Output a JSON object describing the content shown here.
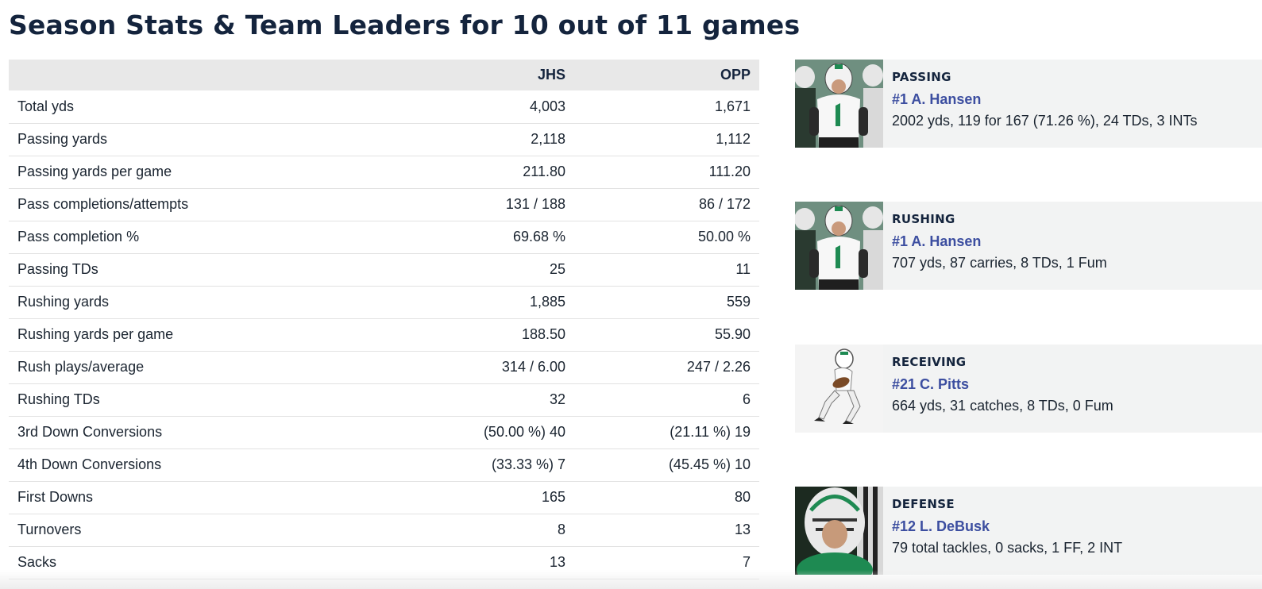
{
  "page": {
    "title": "Season Stats & Team Leaders for 10 out of 11 games"
  },
  "stats_table": {
    "headers": [
      "",
      "JHS",
      "OPP"
    ],
    "rows": [
      {
        "label": "Total yds",
        "jhs": "4,003",
        "opp": "1,671"
      },
      {
        "label": "Passing yards",
        "jhs": "2,118",
        "opp": "1,112"
      },
      {
        "label": "Passing yards per game",
        "jhs": "211.80",
        "opp": "111.20"
      },
      {
        "label": "Pass completions/attempts",
        "jhs": "131 / 188",
        "opp": "86 / 172"
      },
      {
        "label": "Pass completion %",
        "jhs": "69.68 %",
        "opp": "50.00 %"
      },
      {
        "label": "Passing TDs",
        "jhs": "25",
        "opp": "11"
      },
      {
        "label": "Rushing yards",
        "jhs": "1,885",
        "opp": "559"
      },
      {
        "label": "Rushing yards per game",
        "jhs": "188.50",
        "opp": "55.90"
      },
      {
        "label": "Rush plays/average",
        "jhs": "314 / 6.00",
        "opp": "247 / 2.26"
      },
      {
        "label": "Rushing TDs",
        "jhs": "32",
        "opp": "6"
      },
      {
        "label": "3rd Down Conversions",
        "jhs": "(50.00 %) 40",
        "opp": "(21.11 %) 19"
      },
      {
        "label": "4th Down Conversions",
        "jhs": "(33.33 %) 7",
        "opp": "(45.45 %) 10"
      },
      {
        "label": "First Downs",
        "jhs": "165",
        "opp": "80"
      },
      {
        "label": "Turnovers",
        "jhs": "8",
        "opp": "13"
      },
      {
        "label": "Sacks",
        "jhs": "13",
        "opp": "7"
      }
    ]
  },
  "leaders": [
    {
      "category": "PASSING",
      "player": "#1 A. Hansen",
      "line": "2002 yds, 119 for 167 (71.26 %), 24 TDs, 3 INTs",
      "photo": "player-photo-team"
    },
    {
      "category": "RUSHING",
      "player": "#1 A. Hansen",
      "line": "707 yds, 87 carries, 8 TDs, 1 Fum",
      "photo": "player-photo-team"
    },
    {
      "category": "RECEIVING",
      "player": "#21 C. Pitts",
      "line": "664 yds, 31 catches, 8 TDs, 0 Fum",
      "photo": "player-photo-catch"
    },
    {
      "category": "DEFENSE",
      "player": "#12 L. DeBusk",
      "line": "79 total tackles, 0 sacks, 1 FF, 2 INT",
      "photo": "player-photo-helmet"
    }
  ],
  "colors": {
    "title": "#14243d",
    "header_bg": "#e8e8e8",
    "card_bg": "#f2f3f3",
    "player_link": "#3c4ea0",
    "team_green": "#1e8a52"
  }
}
